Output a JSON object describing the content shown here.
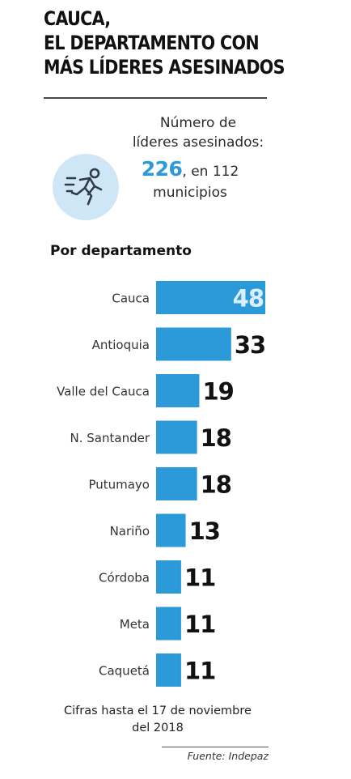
{
  "title": {
    "line1": "CAUCA,",
    "line2": "EL DEPARTAMENTO CON",
    "line3": "MÁS LÍDERES ASESINADOS"
  },
  "summary": {
    "label_line1": "Número de",
    "label_line2": "líderes asesinados:",
    "number": "226",
    "rest_line1": ", en 112",
    "rest_line2": "municipios",
    "icon": "running-person-icon",
    "icon_circle_color": "#cfe6f7",
    "number_color": "#2c9ad9"
  },
  "section_title": "Por departamento",
  "chart_data": {
    "type": "bar",
    "orientation": "horizontal",
    "categories": [
      "Cauca",
      "Antioquia",
      "Valle del Cauca",
      "N. Santander",
      "Putumayo",
      "Nariño",
      "Córdoba",
      "Meta",
      "Caquetá"
    ],
    "values": [
      48,
      33,
      19,
      18,
      18,
      13,
      11,
      11,
      11
    ],
    "value_labels": [
      "48",
      "33",
      "19",
      "18",
      "18",
      "13",
      "11",
      "11",
      "11"
    ],
    "bar_color": "#2c9ad9",
    "label_inside_color": "#dcefff",
    "xlim": [
      0,
      48
    ],
    "grid": false,
    "legend": "none"
  },
  "footnote": {
    "line1": "Cifras hasta el 17 de noviembre",
    "line2": "del 2018"
  },
  "source": "Fuente: Indepaz"
}
